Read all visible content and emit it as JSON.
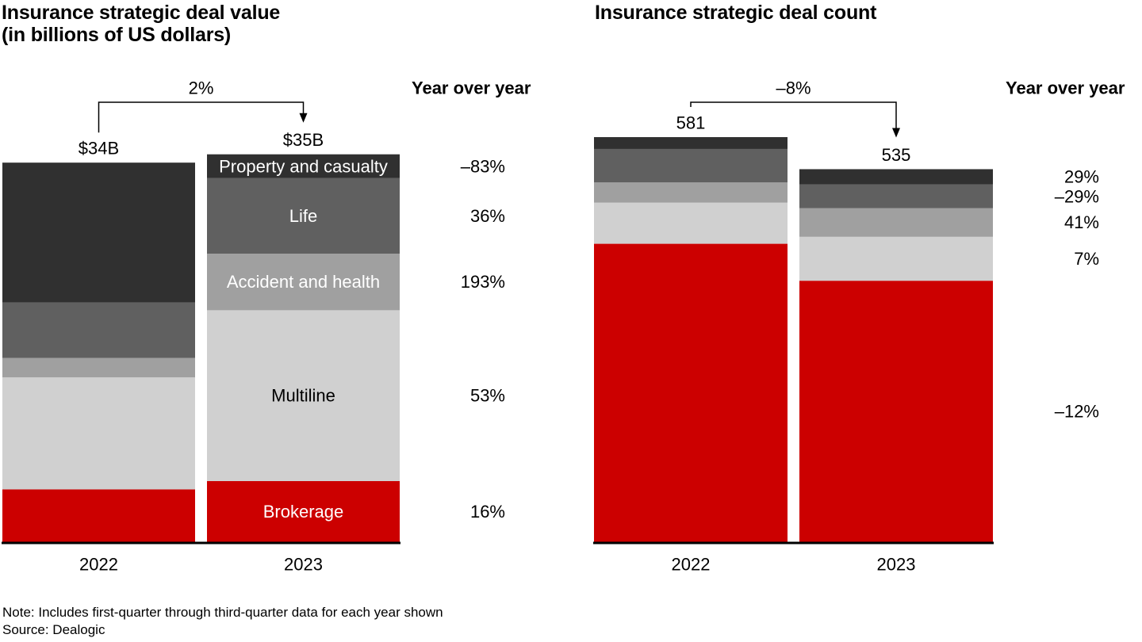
{
  "chart_data": [
    {
      "type": "bar",
      "stacked": true,
      "title": "Insurance strategic deal value",
      "subtitle": "(in billions of US dollars)",
      "categories": [
        "2022",
        "2023"
      ],
      "totals": [
        34,
        35
      ],
      "total_labels": [
        "$34B",
        "$35B"
      ],
      "change_label": "2%",
      "yoy_header": "Year over year",
      "segment_labels_on_category": "2023",
      "xlabel": "",
      "ylabel": "",
      "ylim": [
        0,
        35
      ],
      "grid": false,
      "legend": "none (segment names inside 2023 bar)",
      "series": [
        {
          "name": "Brokerage",
          "values": [
            4.75,
            5.5
          ],
          "color": "#cc0000",
          "label_color": "#ffffff",
          "yoy": "16%"
        },
        {
          "name": "Multiline",
          "values": [
            10.1,
            15.4
          ],
          "color": "#d0d0d0",
          "label_color": "#000000",
          "yoy": "53%"
        },
        {
          "name": "Accident and health",
          "values": [
            1.75,
            5.1
          ],
          "color": "#a0a0a0",
          "label_color": "#ffffff",
          "yoy": "193%"
        },
        {
          "name": "Life",
          "values": [
            5.0,
            6.8
          ],
          "color": "#606060",
          "label_color": "#ffffff",
          "yoy": "36%"
        },
        {
          "name": "Property and casualty",
          "values": [
            12.6,
            2.15
          ],
          "color": "#303030",
          "label_color": "#ffffff",
          "yoy": "–83%"
        }
      ]
    },
    {
      "type": "bar",
      "stacked": true,
      "title": "Insurance strategic deal count",
      "subtitle": "",
      "categories": [
        "2022",
        "2023"
      ],
      "totals": [
        581,
        535
      ],
      "total_labels": [
        "581",
        "535"
      ],
      "change_label": "–8%",
      "yoy_header": "Year over year",
      "segment_labels_on_category": "",
      "xlabel": "",
      "ylabel": "",
      "ylim": [
        0,
        581
      ],
      "grid": false,
      "legend": "none",
      "series": [
        {
          "name": "Brokerage",
          "values": [
            428,
            375
          ],
          "color": "#cc0000",
          "yoy": "–12%"
        },
        {
          "name": "Multiline",
          "values": [
            59,
            63
          ],
          "color": "#d0d0d0",
          "yoy": "7%"
        },
        {
          "name": "Accident and health",
          "values": [
            29,
            41
          ],
          "color": "#a0a0a0",
          "yoy": "41%"
        },
        {
          "name": "Life",
          "values": [
            48,
            34
          ],
          "color": "#606060",
          "yoy": "–29%"
        },
        {
          "name": "Property and casualty",
          "values": [
            17,
            22
          ],
          "color": "#303030",
          "yoy": "29%"
        }
      ]
    }
  ],
  "footnote": {
    "note": "Note: Includes first-quarter through third-quarter data for each year shown",
    "source": "Source: Dealogic"
  }
}
